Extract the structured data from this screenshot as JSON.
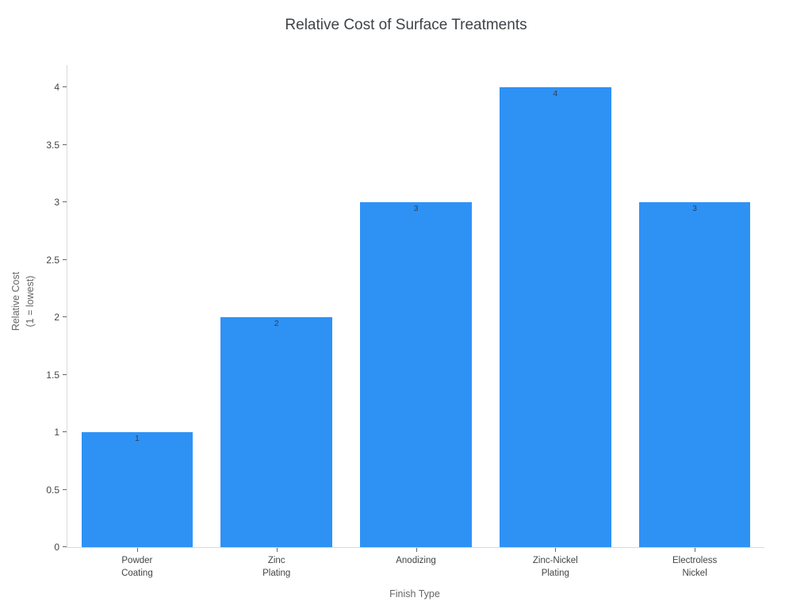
{
  "page": {
    "title": "Relative Cost of Surface Treatments"
  },
  "chart_data": {
    "type": "bar",
    "title": "Relative Cost of Surface Treatments",
    "categories": [
      "Powder\nCoating",
      "Zinc\nPlating",
      "Anodizing",
      "Zinc-Nickel\nPlating",
      "Electroless\nNickel"
    ],
    "values": [
      1,
      2,
      3,
      4,
      3
    ],
    "bar_labels": [
      "1",
      "2",
      "3",
      "4",
      "3"
    ],
    "xlabel": "Finish Type",
    "ylabel": "Relative Cost\n(1 = lowest)",
    "ylim": [
      0,
      4.19
    ],
    "yticks": [
      0,
      0.5,
      1,
      1.5,
      2,
      2.5,
      3,
      3.5,
      4
    ],
    "ytick_labels": [
      "0",
      "0.5",
      "1",
      "1.5",
      "2",
      "2.5",
      "3",
      "3.5",
      "4"
    ],
    "grid": false,
    "legend_position": "none",
    "colors": {
      "bar": "#2e92f5",
      "bar_value_label": "#2a3f5f",
      "axis_line": "#d9d9d9",
      "tick_mark": "#666666",
      "tick_label": "#444444",
      "axis_title": "#666666",
      "title": "#3f4347",
      "background": "#ffffff"
    }
  }
}
